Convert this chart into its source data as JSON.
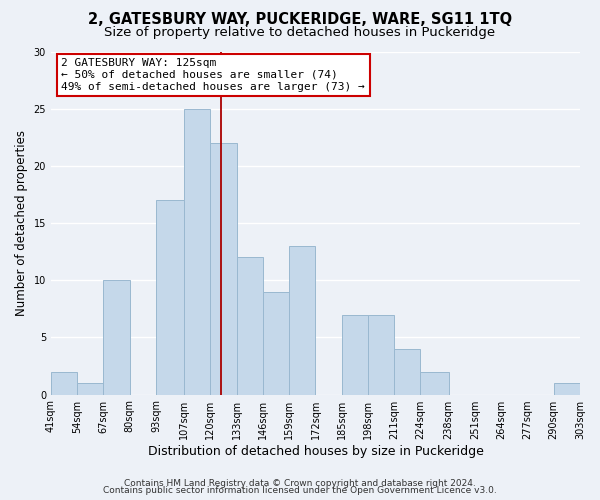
{
  "title": "2, GATESBURY WAY, PUCKERIDGE, WARE, SG11 1TQ",
  "subtitle": "Size of property relative to detached houses in Puckeridge",
  "xlabel": "Distribution of detached houses by size in Puckeridge",
  "ylabel": "Number of detached properties",
  "footer_line1": "Contains HM Land Registry data © Crown copyright and database right 2024.",
  "footer_line2": "Contains public sector information licensed under the Open Government Licence v3.0.",
  "bar_edges": [
    41,
    54,
    67,
    80,
    93,
    107,
    120,
    133,
    146,
    159,
    172,
    185,
    198,
    211,
    224,
    238,
    251,
    264,
    277,
    290,
    303
  ],
  "bar_heights": [
    2,
    1,
    10,
    0,
    17,
    25,
    22,
    12,
    9,
    13,
    0,
    7,
    7,
    4,
    2,
    0,
    0,
    0,
    0,
    1
  ],
  "bar_color": "#c5d8ea",
  "bar_edgecolor": "#9ab8d0",
  "vline_x": 125,
  "vline_color": "#aa0000",
  "annotation_box_title": "2 GATESBURY WAY: 125sqm",
  "annotation_line1": "← 50% of detached houses are smaller (74)",
  "annotation_line2": "49% of semi-detached houses are larger (73) →",
  "annotation_box_edge": "#cc0000",
  "annotation_box_face": "#ffffff",
  "ylim": [
    0,
    30
  ],
  "yticks": [
    0,
    5,
    10,
    15,
    20,
    25,
    30
  ],
  "xtick_labels": [
    "41sqm",
    "54sqm",
    "67sqm",
    "80sqm",
    "93sqm",
    "107sqm",
    "120sqm",
    "133sqm",
    "146sqm",
    "159sqm",
    "172sqm",
    "185sqm",
    "198sqm",
    "211sqm",
    "224sqm",
    "238sqm",
    "251sqm",
    "264sqm",
    "277sqm",
    "290sqm",
    "303sqm"
  ],
  "background_color": "#edf1f7",
  "grid_color": "#ffffff",
  "title_fontsize": 10.5,
  "subtitle_fontsize": 9.5,
  "xlabel_fontsize": 9,
  "ylabel_fontsize": 8.5,
  "tick_fontsize": 7,
  "annotation_fontsize": 8,
  "footer_fontsize": 6.5
}
